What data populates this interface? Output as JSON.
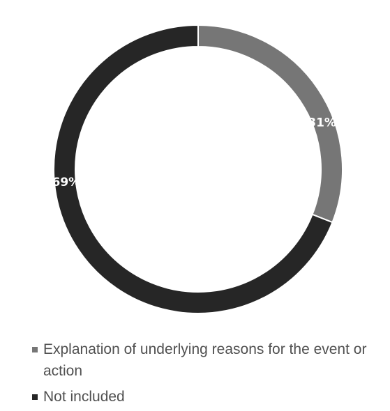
{
  "chart_data": {
    "type": "pie",
    "style": "donut",
    "categories": [
      "Explanation of underlying reasons for the event or action",
      "Not included"
    ],
    "values": [
      31,
      69
    ],
    "value_labels": [
      "31%",
      "69%"
    ],
    "colors": [
      "#767676",
      "#262626"
    ],
    "legend": {
      "placement": "bottom",
      "entries": [
        "Explanation of underlying reasons for the event or action",
        "Not included"
      ]
    }
  }
}
